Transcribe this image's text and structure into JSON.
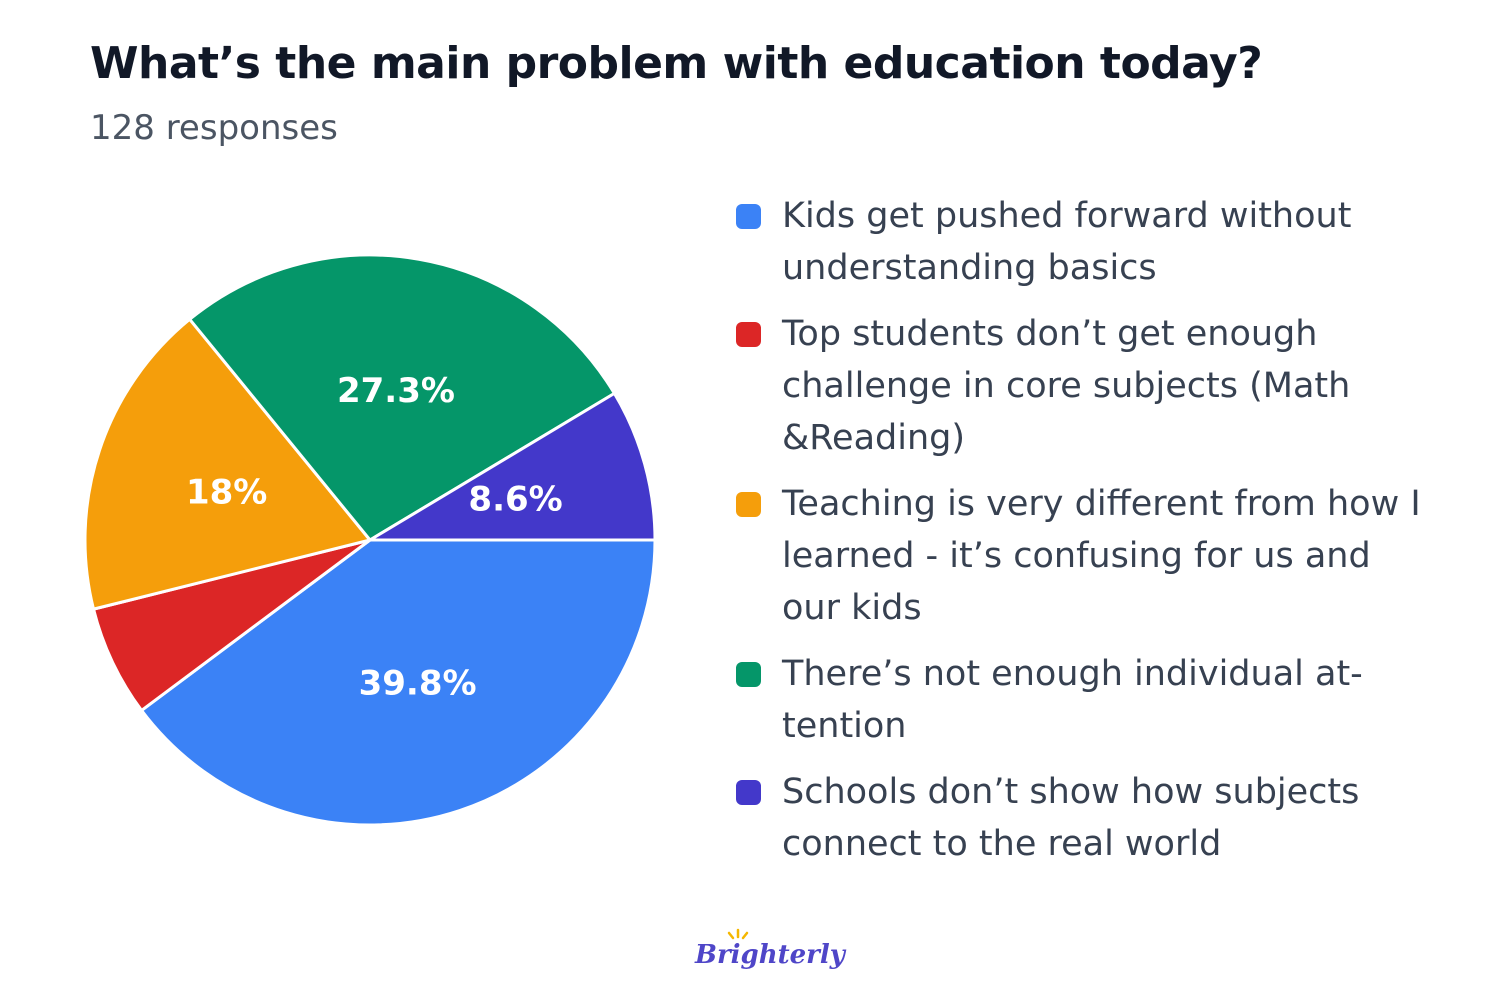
{
  "chart_data": {
    "type": "pie",
    "title": "What’s the main problem with education today?",
    "subtitle": "128 responses",
    "slices": [
      {
        "label": "Kids get pushed forward without understanding basics",
        "value": 39.8,
        "display": "39.8%",
        "color": "#3b82f6"
      },
      {
        "label": "Top students don’t get enough challenge in core subjects (Math &Reading)",
        "value": 6.3,
        "display": "",
        "color": "#dc2626"
      },
      {
        "label": "Teaching is very different from how I learned - it’s confusing for us and our kids",
        "value": 18,
        "display": "18%",
        "color": "#f59e0b"
      },
      {
        "label": "There’s not enough individual attention",
        "value": 27.3,
        "display": "27.3%",
        "color": "#059669"
      },
      {
        "label": "Schools don’t show how subjects connect to the real world",
        "value": 8.6,
        "display": "8.6%",
        "color": "#4338ca"
      }
    ],
    "legend_position": "right"
  },
  "legend": {
    "items": [
      {
        "text": "Kids get pushed forward without understanding basics"
      },
      {
        "text": "Top students don’t get enough challenge in core subjects (Math &Reading)"
      },
      {
        "text": "Teaching is very different from how I learned - it’s confusing for us and our kids"
      },
      {
        "text": "There’s not enough individual at­tention"
      },
      {
        "text": "Schools don’t show how subjects connect to the real world"
      }
    ]
  },
  "branding": {
    "logo": "Brighterly",
    "logo_color": "#4f46c8",
    "ray_color": "#f5b700"
  }
}
